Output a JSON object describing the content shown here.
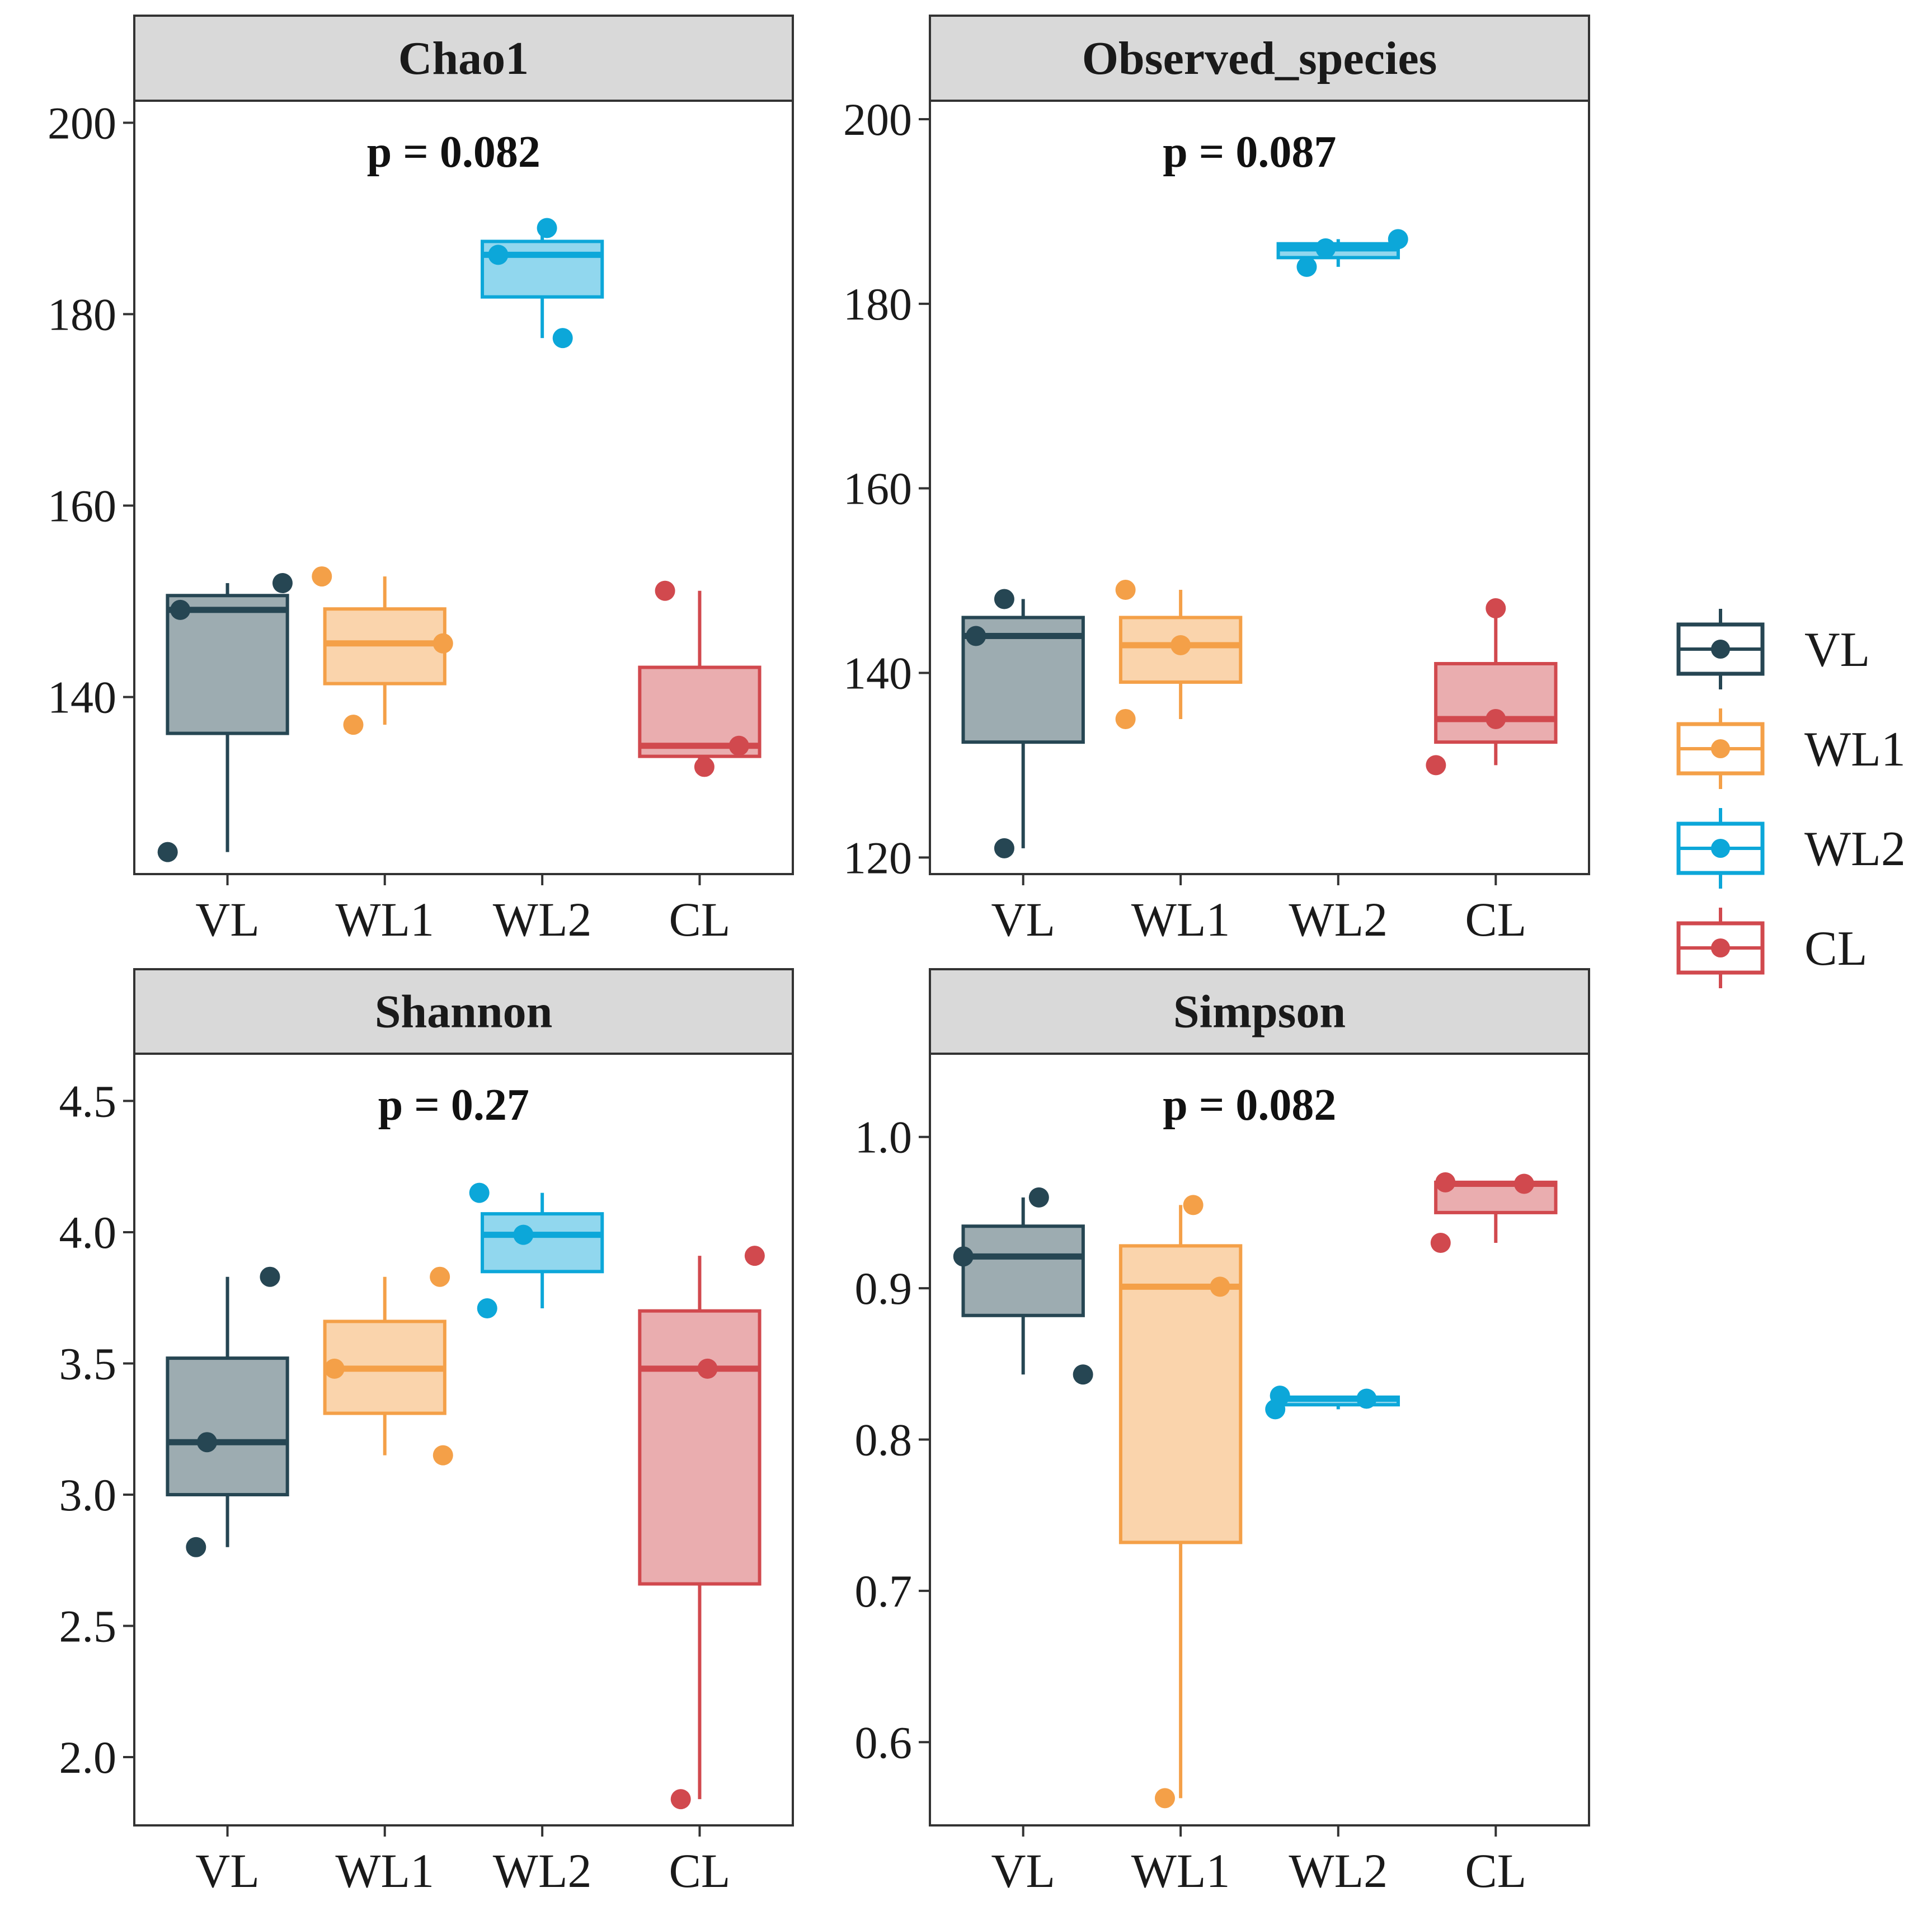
{
  "chart_data": [
    {
      "type": "box",
      "title": "Chao1",
      "p_label": "p = 0.082",
      "categories": [
        "VL",
        "WL1",
        "WL2",
        "CL"
      ],
      "yticks": [
        140,
        160,
        180,
        200
      ],
      "ylim": [
        121.5,
        202.3
      ],
      "boxes": [
        {
          "group": "VL",
          "low": 123.8,
          "q1": 136.2,
          "median": 149.1,
          "q3": 150.6,
          "high": 151.9
        },
        {
          "group": "WL1",
          "low": 137.1,
          "q1": 141.4,
          "median": 145.6,
          "q3": 149.2,
          "high": 152.6
        },
        {
          "group": "WL2",
          "low": 177.5,
          "q1": 181.8,
          "median": 186.2,
          "q3": 187.6,
          "high": 189.0
        },
        {
          "group": "CL",
          "low": 132.7,
          "q1": 133.8,
          "median": 134.9,
          "q3": 143.1,
          "high": 151.1
        }
      ],
      "points": [
        {
          "group": "VL",
          "values": [
            123.8,
            149.1,
            151.9
          ],
          "offsets": [
            -0.38,
            -0.3,
            0.35
          ]
        },
        {
          "group": "WL1",
          "values": [
            152.6,
            137.1,
            145.6
          ],
          "offsets": [
            -0.4,
            -0.2,
            0.37
          ]
        },
        {
          "group": "WL2",
          "values": [
            186.2,
            189.0,
            177.5
          ],
          "offsets": [
            -0.28,
            0.03,
            0.13
          ]
        },
        {
          "group": "CL",
          "values": [
            151.1,
            132.7,
            134.9
          ],
          "offsets": [
            -0.22,
            0.03,
            0.25
          ]
        }
      ]
    },
    {
      "type": "box",
      "title": "Observed_species",
      "p_label": "p = 0.087",
      "categories": [
        "VL",
        "WL1",
        "WL2",
        "CL"
      ],
      "yticks": [
        120,
        140,
        160,
        180,
        200
      ],
      "ylim": [
        118.2,
        202.0
      ],
      "boxes": [
        {
          "group": "VL",
          "low": 121,
          "q1": 132.5,
          "median": 144,
          "q3": 146,
          "high": 148
        },
        {
          "group": "WL1",
          "low": 135,
          "q1": 139,
          "median": 143,
          "q3": 146,
          "high": 149
        },
        {
          "group": "WL2",
          "low": 184,
          "q1": 185,
          "median": 186,
          "q3": 186.5,
          "high": 187
        },
        {
          "group": "CL",
          "low": 130,
          "q1": 132.5,
          "median": 135,
          "q3": 141,
          "high": 147
        }
      ],
      "points": [
        {
          "group": "VL",
          "values": [
            144,
            121,
            148
          ],
          "offsets": [
            -0.3,
            -0.12,
            -0.12
          ]
        },
        {
          "group": "WL1",
          "values": [
            135,
            149,
            143
          ],
          "offsets": [
            -0.35,
            -0.35,
            0.0
          ]
        },
        {
          "group": "WL2",
          "values": [
            184,
            186,
            187
          ],
          "offsets": [
            -0.2,
            -0.08,
            0.38
          ]
        },
        {
          "group": "CL",
          "values": [
            130,
            135,
            147
          ],
          "offsets": [
            -0.38,
            0.0,
            0.0
          ]
        }
      ]
    },
    {
      "type": "box",
      "title": "Shannon",
      "p_label": "p = 0.27",
      "categories": [
        "VL",
        "WL1",
        "WL2",
        "CL"
      ],
      "yticks": [
        2.0,
        2.5,
        3.0,
        3.5,
        4.0,
        4.5
      ],
      "ytick_labels": [
        "2.0",
        "2.5",
        "3.0",
        "3.5",
        "4.0",
        "4.5"
      ],
      "ylim": [
        1.74,
        4.68
      ],
      "boxes": [
        {
          "group": "VL",
          "low": 2.8,
          "q1": 3.0,
          "median": 3.2,
          "q3": 3.52,
          "high": 3.83
        },
        {
          "group": "WL1",
          "low": 3.15,
          "q1": 3.31,
          "median": 3.48,
          "q3": 3.66,
          "high": 3.83
        },
        {
          "group": "WL2",
          "low": 3.71,
          "q1": 3.85,
          "median": 3.99,
          "q3": 4.07,
          "high": 4.15
        },
        {
          "group": "CL",
          "low": 1.84,
          "q1": 2.66,
          "median": 3.48,
          "q3": 3.7,
          "high": 3.91
        }
      ],
      "points": [
        {
          "group": "VL",
          "values": [
            2.8,
            3.2,
            3.83
          ],
          "offsets": [
            -0.2,
            -0.13,
            0.27
          ]
        },
        {
          "group": "WL1",
          "values": [
            3.48,
            3.83,
            3.15
          ],
          "offsets": [
            -0.32,
            0.35,
            0.37
          ]
        },
        {
          "group": "WL2",
          "values": [
            4.15,
            3.71,
            3.99
          ],
          "offsets": [
            -0.4,
            -0.35,
            -0.12
          ]
        },
        {
          "group": "CL",
          "values": [
            1.84,
            3.48,
            3.91
          ],
          "offsets": [
            -0.12,
            0.05,
            0.35
          ]
        }
      ]
    },
    {
      "type": "box",
      "title": "Simpson",
      "p_label": "p = 0.082",
      "categories": [
        "VL",
        "WL1",
        "WL2",
        "CL"
      ],
      "yticks": [
        0.6,
        0.7,
        0.8,
        0.9,
        1.0
      ],
      "ytick_labels": [
        "0.6",
        "0.7",
        "0.8",
        "0.9",
        "1.0"
      ],
      "ylim": [
        0.545,
        1.055
      ],
      "boxes": [
        {
          "group": "VL",
          "low": 0.843,
          "q1": 0.882,
          "median": 0.921,
          "q3": 0.941,
          "high": 0.96
        },
        {
          "group": "WL1",
          "low": 0.563,
          "q1": 0.732,
          "median": 0.901,
          "q3": 0.928,
          "high": 0.955
        },
        {
          "group": "WL2",
          "low": 0.82,
          "q1": 0.823,
          "median": 0.827,
          "q3": 0.828,
          "high": 0.829
        },
        {
          "group": "CL",
          "low": 0.93,
          "q1": 0.95,
          "median": 0.969,
          "q3": 0.97,
          "high": 0.97
        }
      ],
      "points": [
        {
          "group": "VL",
          "values": [
            0.921,
            0.96,
            0.843
          ],
          "offsets": [
            -0.38,
            0.1,
            0.38
          ]
        },
        {
          "group": "WL1",
          "values": [
            0.563,
            0.955,
            0.901
          ],
          "offsets": [
            -0.1,
            0.08,
            0.25
          ]
        },
        {
          "group": "WL2",
          "values": [
            0.82,
            0.829,
            0.827
          ],
          "offsets": [
            -0.4,
            -0.37,
            0.18
          ]
        },
        {
          "group": "CL",
          "values": [
            0.93,
            0.97,
            0.969
          ],
          "offsets": [
            -0.35,
            -0.32,
            0.18
          ]
        }
      ]
    }
  ],
  "legend": {
    "position": "right",
    "items": [
      {
        "label": "VL",
        "color": "#264653"
      },
      {
        "label": "WL1",
        "color": "#F4A048"
      },
      {
        "label": "WL2",
        "color": "#0CA7D9"
      },
      {
        "label": "CL",
        "color": "#D1494E"
      }
    ]
  },
  "colors": {
    "VL": "#264653",
    "WL1": "#F4A048",
    "WL2": "#0CA7D9",
    "CL": "#D1494E",
    "strip_fill": "#D9D9D9"
  }
}
